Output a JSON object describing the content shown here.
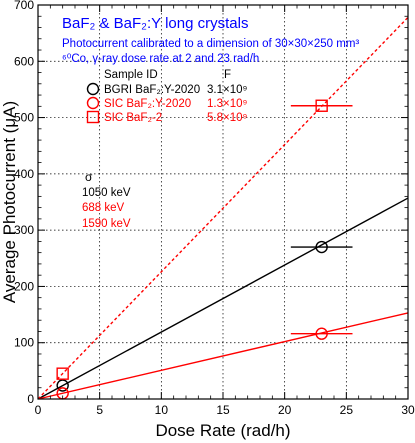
{
  "chart_data": {
    "type": "scatter",
    "title": "BaF₂ & BaF₂:Y long crystals",
    "subtitle_line1": "Photocurrent calibrated to a dimension of 30×30×250 mm³",
    "subtitle_line2": "⁶⁰Co, γ-ray dose rate at 2 and 23 rad/h",
    "xlabel": "Dose Rate (rad/h)",
    "ylabel": "Average Photocurrent (μA)",
    "xlim": [
      0,
      30
    ],
    "ylim": [
      0,
      700
    ],
    "xticks": [
      "0",
      "5",
      "10",
      "15",
      "20",
      "25",
      "30"
    ],
    "yticks": [
      "0",
      "100",
      "200",
      "300",
      "400",
      "500",
      "600",
      "700"
    ],
    "grid": true,
    "legend_header_id": "Sample ID",
    "legend_header_f": "F",
    "sigma_header": "σ",
    "series": [
      {
        "name": "BGRI BaF₂:Y-2020",
        "f_value": "3.1×10⁹",
        "sigma": "1050 keV",
        "marker": "circle",
        "color": "#000000",
        "line_style": "solid",
        "slope": 11.9,
        "points": [
          {
            "x": 2,
            "y": 24,
            "xerr": 0
          },
          {
            "x": 23,
            "y": 270,
            "xerr": 2.5
          }
        ]
      },
      {
        "name": "SIC BaF₂:Y-2020",
        "f_value": "1.3×10⁹",
        "sigma": "688 keV",
        "marker": "circle",
        "color": "#ff0000",
        "line_style": "solid",
        "slope": 5.1,
        "points": [
          {
            "x": 2,
            "y": 10,
            "xerr": 0
          },
          {
            "x": 23,
            "y": 116,
            "xerr": 2.5
          }
        ]
      },
      {
        "name": "SIC BaF₂-2",
        "f_value": "5.8×10⁹",
        "sigma": "1590 keV",
        "marker": "square",
        "color": "#ff0000",
        "line_style": "dotted",
        "slope": 22.6,
        "points": [
          {
            "x": 2,
            "y": 45,
            "xerr": 0
          },
          {
            "x": 23,
            "y": 521,
            "xerr": 2.5
          }
        ]
      }
    ]
  },
  "colors": {
    "title": "#0000ff",
    "axis": "#000000",
    "grid": "#000000"
  }
}
